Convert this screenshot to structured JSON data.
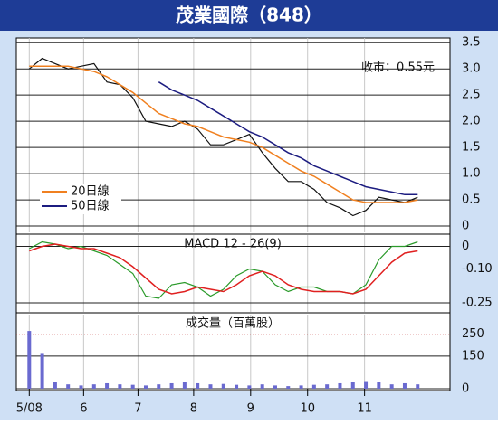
{
  "chart_data": [
    {
      "type": "line",
      "title": "茂業國際（848）",
      "annotation": "收市：0.55元",
      "legend": "left",
      "x": [
        0,
        1,
        2,
        3,
        4,
        5,
        6,
        7,
        8,
        9,
        10,
        11,
        12,
        13,
        14,
        15,
        16,
        17,
        18,
        19,
        20,
        21,
        22,
        23,
        24,
        25,
        26,
        27,
        28,
        29,
        30
      ],
      "xlim": [
        -1,
        32.5
      ],
      "ylim": [
        -0.12,
        3.59
      ],
      "yticks": [
        {
          "value": 3.5,
          "label": "3.5"
        },
        {
          "value": 3,
          "label": "3.0"
        },
        {
          "value": 2.5,
          "label": "2.5"
        },
        {
          "value": 2,
          "label": "2.0"
        },
        {
          "value": 1.5,
          "label": "1.5"
        },
        {
          "value": 1,
          "label": "1.0"
        },
        {
          "value": 0.5,
          "label": "0.5"
        },
        0
      ],
      "series": [
        {
          "name": "收市",
          "color": "#111111",
          "values": [
            3.0,
            3.2,
            3.1,
            3.0,
            3.05,
            3.1,
            2.75,
            2.7,
            2.45,
            2.0,
            1.95,
            1.9,
            2.0,
            1.85,
            1.55,
            1.55,
            1.65,
            1.75,
            1.4,
            1.1,
            0.85,
            0.85,
            0.7,
            0.45,
            0.35,
            0.2,
            0.3,
            0.55,
            0.5,
            0.45,
            0.55
          ]
        },
        {
          "name": "20日線",
          "color": "#f08020",
          "values": [
            3.05,
            3.05,
            3.05,
            3.05,
            3.0,
            2.95,
            2.85,
            2.7,
            2.55,
            2.35,
            2.15,
            2.05,
            1.95,
            1.9,
            1.8,
            1.7,
            1.65,
            1.6,
            1.5,
            1.35,
            1.2,
            1.05,
            0.95,
            0.8,
            0.65,
            0.5,
            0.45,
            0.45,
            0.45,
            0.45,
            0.5
          ]
        },
        {
          "name": "50日線",
          "color": "#1c1c80",
          "values": [
            null,
            null,
            null,
            null,
            null,
            null,
            null,
            null,
            null,
            null,
            2.75,
            2.6,
            2.5,
            2.4,
            2.25,
            2.1,
            1.95,
            1.8,
            1.7,
            1.55,
            1.4,
            1.3,
            1.15,
            1.05,
            0.95,
            0.85,
            0.75,
            0.7,
            0.65,
            0.6,
            0.6
          ]
        }
      ]
    },
    {
      "type": "line",
      "title": "MACD 12 - 26(9)",
      "x": [
        0,
        1,
        2,
        3,
        4,
        5,
        6,
        7,
        8,
        9,
        10,
        11,
        12,
        13,
        14,
        15,
        16,
        17,
        18,
        19,
        20,
        21,
        22,
        23,
        24,
        25,
        26,
        27,
        28,
        29,
        30
      ],
      "xlim": [
        -1,
        32.5
      ],
      "ylim": [
        -0.29,
        0.05
      ],
      "yticks": [
        0,
        {
          "value": -0.1,
          "label": "-0.10"
        },
        -0.25
      ],
      "series": [
        {
          "color": "#2a9a2a",
          "values": [
            -0.01,
            0.02,
            0.01,
            -0.01,
            0.0,
            -0.02,
            -0.04,
            -0.08,
            -0.12,
            -0.22,
            -0.23,
            -0.17,
            -0.16,
            -0.18,
            -0.22,
            -0.19,
            -0.13,
            -0.1,
            -0.11,
            -0.17,
            -0.2,
            -0.18,
            -0.18,
            -0.2,
            -0.2,
            -0.21,
            -0.17,
            -0.06,
            0.0,
            0.0,
            0.02
          ]
        },
        {
          "color": "#e02020",
          "values": [
            -0.02,
            0.0,
            0.01,
            0.0,
            -0.01,
            -0.01,
            -0.03,
            -0.05,
            -0.09,
            -0.14,
            -0.19,
            -0.21,
            -0.2,
            -0.18,
            -0.19,
            -0.2,
            -0.17,
            -0.13,
            -0.11,
            -0.13,
            -0.17,
            -0.19,
            -0.2,
            -0.2,
            -0.2,
            -0.21,
            -0.19,
            -0.13,
            -0.07,
            -0.03,
            -0.02
          ]
        }
      ]
    },
    {
      "type": "bar",
      "title": "成交量（百萬股）",
      "color": "#6a6ad0",
      "x": [
        0,
        1,
        2,
        3,
        4,
        5,
        6,
        7,
        8,
        9,
        10,
        11,
        12,
        13,
        14,
        15,
        16,
        17,
        18,
        19,
        20,
        21,
        22,
        23,
        24,
        25,
        26,
        27,
        28,
        29,
        30
      ],
      "xlim": [
        -1,
        32.5
      ],
      "ylim": [
        0,
        340
      ],
      "yticks": [
        250,
        150,
        0
      ],
      "xticks": [
        {
          "value": 0,
          "label": "5/08"
        },
        {
          "value": 4.2,
          "label": "6"
        },
        {
          "value": 8.4,
          "label": "7"
        },
        {
          "value": 12.7,
          "label": "8"
        },
        {
          "value": 17.1,
          "label": "9"
        },
        {
          "value": 21.5,
          "label": "10"
        },
        {
          "value": 25.9,
          "label": "11"
        }
      ],
      "values": [
        265,
        160,
        30,
        20,
        15,
        20,
        25,
        20,
        18,
        15,
        20,
        25,
        30,
        25,
        20,
        22,
        18,
        15,
        20,
        15,
        12,
        15,
        18,
        20,
        25,
        30,
        35,
        30,
        20,
        25,
        20
      ]
    }
  ]
}
